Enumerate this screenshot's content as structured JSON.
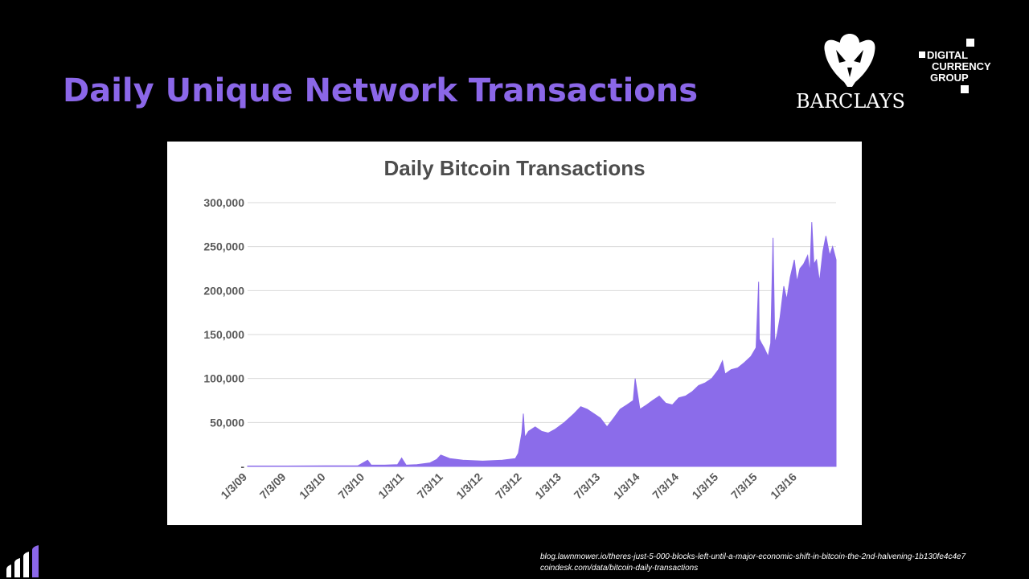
{
  "slide": {
    "title": "Daily Unique Network Transactions"
  },
  "logos": {
    "barclays": {
      "word": "BARCLAYS",
      "icon": "eagle-icon"
    },
    "dcg": {
      "lines": [
        "DIGITAL",
        "CURRENCY",
        "GROUP"
      ]
    }
  },
  "sources": [
    "blog.lawnmower.io/theres-just-5-000-blocks-left-until-a-major-economic-shift-in-bitcoin-the-2nd-halvening-1b130fe4c4e7",
    "coindesk.com/data/bitcoin-daily-transactions"
  ],
  "colors": {
    "accent": "#8b67e8",
    "area": "#8b6cea",
    "grid": "#d9d9d9",
    "axis_text": "#595959"
  },
  "chart_data": {
    "type": "area",
    "title": "Daily Bitcoin Transactions",
    "xlabel": "",
    "ylabel": "",
    "ylim": [
      0,
      300000
    ],
    "xlim": [
      "2009-01-03",
      "2016-07-01"
    ],
    "y_ticks": [
      0,
      50000,
      100000,
      150000,
      200000,
      250000,
      300000
    ],
    "y_tick_labels": [
      "-",
      "50,000",
      "100,000",
      "150,000",
      "200,000",
      "250,000",
      "300,000"
    ],
    "x_ticks": [
      "2009-01-03",
      "2009-07-03",
      "2010-01-03",
      "2010-07-03",
      "2011-01-03",
      "2011-07-03",
      "2012-01-03",
      "2012-07-03",
      "2013-01-03",
      "2013-07-03",
      "2014-01-03",
      "2014-07-03",
      "2015-01-03",
      "2015-07-03",
      "2016-01-03"
    ],
    "x_tick_labels": [
      "1/3/09",
      "7/3/09",
      "1/3/10",
      "7/3/10",
      "1/3/11",
      "7/3/11",
      "1/3/12",
      "7/3/12",
      "1/3/13",
      "7/3/13",
      "1/3/14",
      "7/3/14",
      "1/3/15",
      "7/3/15",
      "1/3/16"
    ],
    "grid": true,
    "legend": "none",
    "series": [
      {
        "x": [
          "2009-01-03",
          "2009-07-01",
          "2010-01-01",
          "2010-06-01",
          "2010-07-15",
          "2010-08-01",
          "2010-10-01",
          "2010-12-01",
          "2010-12-20",
          "2011-01-10",
          "2011-03-01",
          "2011-05-01",
          "2011-06-01",
          "2011-06-20",
          "2011-08-01",
          "2011-10-01",
          "2012-01-01",
          "2012-04-01",
          "2012-06-01",
          "2012-06-15",
          "2012-07-01",
          "2012-07-08",
          "2012-07-15",
          "2012-08-01",
          "2012-09-01",
          "2012-10-01",
          "2012-11-01",
          "2012-12-01",
          "2013-01-15",
          "2013-03-01",
          "2013-04-01",
          "2013-05-01",
          "2013-06-01",
          "2013-07-01",
          "2013-08-01",
          "2013-09-01",
          "2013-10-01",
          "2013-11-01",
          "2013-12-01",
          "2013-12-10",
          "2014-01-01",
          "2014-02-01",
          "2014-03-01",
          "2014-04-01",
          "2014-05-01",
          "2014-06-01",
          "2014-07-01",
          "2014-08-01",
          "2014-09-01",
          "2014-10-01",
          "2014-11-01",
          "2014-12-01",
          "2015-01-01",
          "2015-01-20",
          "2015-02-01",
          "2015-03-01",
          "2015-04-01",
          "2015-05-01",
          "2015-06-01",
          "2015-06-25",
          "2015-07-07",
          "2015-07-10",
          "2015-07-20",
          "2015-08-01",
          "2015-08-20",
          "2015-09-01",
          "2015-09-12",
          "2015-09-20",
          "2015-10-01",
          "2015-10-15",
          "2015-11-01",
          "2015-11-15",
          "2015-12-01",
          "2015-12-20",
          "2016-01-01",
          "2016-01-15",
          "2016-02-01",
          "2016-02-20",
          "2016-03-01",
          "2016-03-10",
          "2016-03-20",
          "2016-04-01",
          "2016-04-15",
          "2016-05-01",
          "2016-05-15",
          "2016-06-01",
          "2016-06-15",
          "2016-07-01"
        ],
        "y": [
          500,
          500,
          600,
          800,
          7000,
          1500,
          1500,
          2000,
          9500,
          1500,
          2000,
          4000,
          8000,
          13000,
          9000,
          7000,
          6000,
          7000,
          9000,
          15000,
          38000,
          60000,
          33000,
          40000,
          45000,
          40000,
          38000,
          42000,
          50000,
          60000,
          68000,
          65000,
          60000,
          55000,
          45000,
          55000,
          65000,
          70000,
          75000,
          100000,
          65000,
          70000,
          75000,
          80000,
          72000,
          70000,
          78000,
          80000,
          85000,
          92000,
          95000,
          100000,
          110000,
          120000,
          105000,
          110000,
          112000,
          118000,
          125000,
          135000,
          210000,
          145000,
          140000,
          135000,
          125000,
          140000,
          260000,
          140000,
          150000,
          170000,
          205000,
          190000,
          215000,
          235000,
          210000,
          225000,
          230000,
          240000,
          220000,
          278000,
          230000,
          235000,
          210000,
          245000,
          262000,
          240000,
          250000,
          235000
        ]
      }
    ]
  }
}
